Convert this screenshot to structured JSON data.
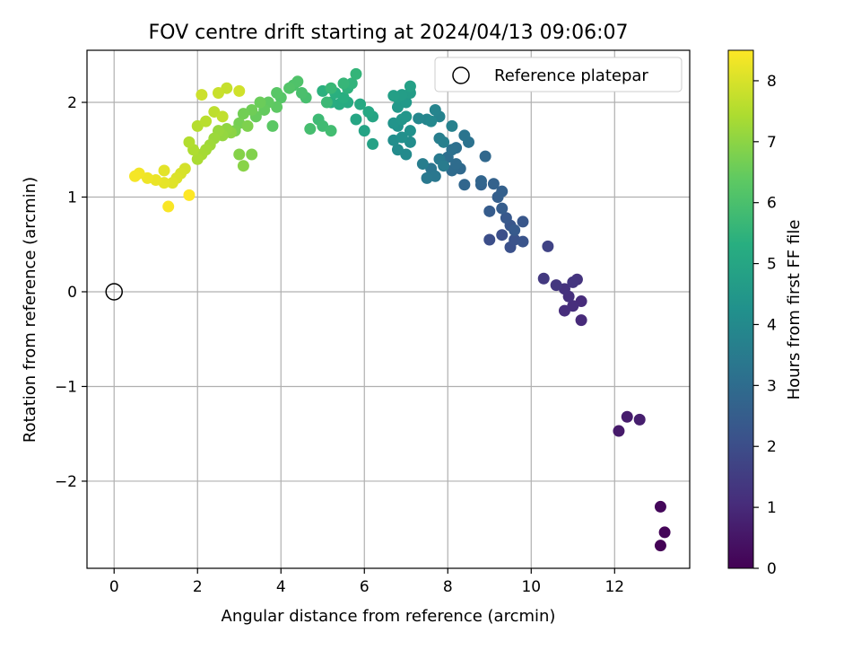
{
  "chart_data": {
    "type": "scatter",
    "title": "FOV centre drift starting at 2024/04/13 09:06:07",
    "xlabel": "Angular distance from reference (arcmin)",
    "ylabel": "Rotation from reference (arcmin)",
    "xlim": [
      -0.65,
      13.8
    ],
    "ylim": [
      -2.92,
      2.55
    ],
    "xticks": [
      0,
      2,
      4,
      6,
      8,
      10,
      12
    ],
    "yticks": [
      -2,
      -1,
      0,
      1,
      2
    ],
    "grid": true,
    "legend": {
      "position": "top-right",
      "entries": [
        {
          "label": "Reference platepar",
          "marker": "open-circle"
        }
      ]
    },
    "reference_point": {
      "x": 0,
      "y": 0
    },
    "colorbar": {
      "label": "Hours from first FF file",
      "range": [
        0,
        8.5
      ],
      "ticks": [
        0,
        1,
        2,
        3,
        4,
        5,
        6,
        7,
        8
      ],
      "colormap": "viridis"
    },
    "series": [
      {
        "points": [
          [
            13.1,
            -2.68,
            0.05
          ],
          [
            13.2,
            -2.54,
            0.1
          ],
          [
            13.1,
            -2.27,
            0.15
          ],
          [
            12.1,
            -1.47,
            0.6
          ],
          [
            12.3,
            -1.32,
            0.65
          ],
          [
            12.6,
            -1.35,
            0.7
          ],
          [
            11.2,
            -0.3,
            1.0
          ],
          [
            11.2,
            -0.1,
            1.05
          ],
          [
            11.0,
            -0.15,
            1.1
          ],
          [
            10.8,
            -0.2,
            1.1
          ],
          [
            10.9,
            -0.05,
            1.15
          ],
          [
            10.8,
            0.03,
            1.2
          ],
          [
            11.1,
            0.13,
            1.25
          ],
          [
            11.0,
            0.1,
            1.3
          ],
          [
            10.6,
            0.07,
            1.35
          ],
          [
            10.3,
            0.14,
            1.4
          ],
          [
            10.4,
            0.48,
            1.7
          ],
          [
            9.0,
            0.55,
            2.0
          ],
          [
            9.3,
            0.6,
            2.05
          ],
          [
            9.5,
            0.47,
            2.1
          ],
          [
            9.6,
            0.55,
            2.15
          ],
          [
            9.8,
            0.53,
            2.2
          ],
          [
            9.5,
            0.7,
            2.25
          ],
          [
            9.8,
            0.74,
            2.3
          ],
          [
            9.4,
            0.78,
            2.35
          ],
          [
            9.6,
            0.65,
            2.4
          ],
          [
            9.0,
            0.85,
            2.45
          ],
          [
            9.3,
            0.88,
            2.5
          ],
          [
            9.2,
            1.0,
            2.55
          ],
          [
            9.3,
            1.06,
            2.6
          ],
          [
            9.1,
            1.14,
            2.65
          ],
          [
            8.8,
            1.13,
            2.7
          ],
          [
            8.8,
            1.17,
            2.75
          ],
          [
            8.4,
            1.13,
            2.8
          ],
          [
            8.9,
            1.43,
            2.85
          ],
          [
            8.3,
            1.3,
            2.9
          ],
          [
            8.1,
            1.28,
            2.95
          ],
          [
            8.2,
            1.35,
            3.0
          ],
          [
            8.0,
            1.42,
            3.05
          ],
          [
            8.2,
            1.52,
            3.1
          ],
          [
            8.1,
            1.5,
            3.15
          ],
          [
            8.5,
            1.58,
            3.2
          ],
          [
            8.4,
            1.65,
            3.25
          ],
          [
            7.6,
            1.3,
            3.3
          ],
          [
            7.7,
            1.22,
            3.35
          ],
          [
            7.5,
            1.2,
            3.4
          ],
          [
            7.8,
            1.4,
            3.45
          ],
          [
            7.9,
            1.33,
            3.5
          ],
          [
            7.4,
            1.35,
            3.55
          ],
          [
            7.8,
            1.62,
            3.6
          ],
          [
            7.9,
            1.58,
            3.65
          ],
          [
            8.1,
            1.75,
            3.7
          ],
          [
            7.8,
            1.85,
            3.75
          ],
          [
            7.7,
            1.92,
            3.8
          ],
          [
            7.5,
            1.82,
            3.85
          ],
          [
            7.3,
            1.83,
            3.9
          ],
          [
            7.6,
            1.8,
            3.95
          ],
          [
            7.0,
            1.45,
            4.0
          ],
          [
            6.8,
            1.5,
            4.05
          ],
          [
            7.1,
            1.58,
            4.1
          ],
          [
            6.7,
            1.6,
            4.15
          ],
          [
            6.9,
            1.63,
            4.2
          ],
          [
            7.1,
            1.7,
            4.25
          ],
          [
            6.8,
            1.75,
            4.3
          ],
          [
            6.7,
            1.78,
            4.35
          ],
          [
            6.9,
            1.82,
            4.4
          ],
          [
            7.0,
            1.85,
            4.45
          ],
          [
            6.8,
            1.95,
            4.5
          ],
          [
            7.0,
            2.0,
            4.55
          ],
          [
            6.8,
            2.05,
            4.6
          ],
          [
            7.1,
            2.1,
            4.65
          ],
          [
            6.9,
            2.08,
            4.7
          ],
          [
            6.7,
            2.07,
            4.75
          ],
          [
            7.1,
            2.17,
            4.8
          ],
          [
            6.2,
            1.56,
            4.85
          ],
          [
            6.0,
            1.7,
            4.9
          ],
          [
            6.2,
            1.85,
            4.95
          ],
          [
            5.8,
            1.82,
            5.0
          ],
          [
            6.1,
            1.9,
            5.05
          ],
          [
            5.9,
            1.98,
            5.1
          ],
          [
            5.6,
            2.0,
            5.15
          ],
          [
            5.4,
            1.98,
            5.2
          ],
          [
            5.2,
            2.0,
            5.25
          ],
          [
            5.5,
            2.05,
            5.3
          ],
          [
            5.3,
            2.1,
            5.35
          ],
          [
            5.0,
            2.12,
            5.4
          ],
          [
            5.6,
            2.15,
            5.45
          ],
          [
            5.7,
            2.2,
            5.5
          ],
          [
            5.8,
            2.3,
            5.55
          ],
          [
            5.5,
            2.2,
            5.6
          ],
          [
            5.2,
            2.15,
            5.65
          ],
          [
            5.1,
            2.0,
            5.7
          ],
          [
            4.9,
            1.82,
            5.75
          ],
          [
            5.0,
            1.75,
            5.8
          ],
          [
            5.2,
            1.7,
            5.85
          ],
          [
            4.7,
            1.72,
            5.9
          ],
          [
            4.6,
            2.05,
            5.95
          ],
          [
            4.5,
            2.1,
            6.0
          ],
          [
            4.3,
            2.18,
            6.05
          ],
          [
            4.4,
            2.22,
            6.1
          ],
          [
            4.2,
            2.15,
            6.15
          ],
          [
            4.0,
            2.05,
            6.2
          ],
          [
            3.9,
            2.1,
            6.25
          ],
          [
            3.8,
            1.75,
            6.3
          ],
          [
            3.9,
            1.95,
            6.35
          ],
          [
            3.7,
            2.0,
            6.4
          ],
          [
            3.6,
            1.92,
            6.45
          ],
          [
            3.4,
            1.85,
            6.5
          ],
          [
            3.5,
            2.0,
            6.55
          ],
          [
            3.3,
            1.92,
            6.6
          ],
          [
            3.1,
            1.88,
            6.65
          ],
          [
            3.0,
            1.78,
            6.7
          ],
          [
            2.9,
            1.7,
            6.75
          ],
          [
            3.2,
            1.75,
            6.8
          ],
          [
            3.3,
            1.45,
            6.85
          ],
          [
            3.0,
            1.45,
            6.9
          ],
          [
            3.1,
            1.33,
            6.95
          ],
          [
            2.8,
            1.68,
            7.0
          ],
          [
            2.7,
            1.72,
            7.05
          ],
          [
            2.6,
            1.65,
            7.1
          ],
          [
            2.5,
            1.7,
            7.15
          ],
          [
            2.4,
            1.62,
            7.2
          ],
          [
            2.3,
            1.55,
            7.25
          ],
          [
            2.2,
            1.5,
            7.3
          ],
          [
            2.1,
            1.45,
            7.35
          ],
          [
            2.0,
            1.4,
            7.4
          ],
          [
            1.9,
            1.5,
            7.45
          ],
          [
            1.8,
            1.58,
            7.5
          ],
          [
            2.0,
            1.75,
            7.55
          ],
          [
            2.2,
            1.8,
            7.6
          ],
          [
            2.4,
            1.9,
            7.65
          ],
          [
            2.6,
            1.85,
            7.7
          ],
          [
            2.7,
            2.15,
            7.75
          ],
          [
            2.5,
            2.1,
            7.8
          ],
          [
            2.1,
            2.08,
            7.85
          ],
          [
            3.0,
            2.12,
            7.9
          ],
          [
            1.7,
            1.3,
            7.95
          ],
          [
            1.6,
            1.25,
            8.0
          ],
          [
            1.5,
            1.2,
            8.05
          ],
          [
            1.4,
            1.15,
            8.1
          ],
          [
            1.2,
            1.28,
            8.15
          ],
          [
            1.2,
            1.15,
            8.2
          ],
          [
            1.0,
            1.18,
            8.25
          ],
          [
            0.8,
            1.2,
            8.3
          ],
          [
            0.6,
            1.25,
            8.35
          ],
          [
            0.5,
            1.22,
            8.4
          ],
          [
            1.3,
            0.9,
            8.45
          ],
          [
            1.8,
            1.02,
            8.5
          ]
        ]
      }
    ]
  }
}
